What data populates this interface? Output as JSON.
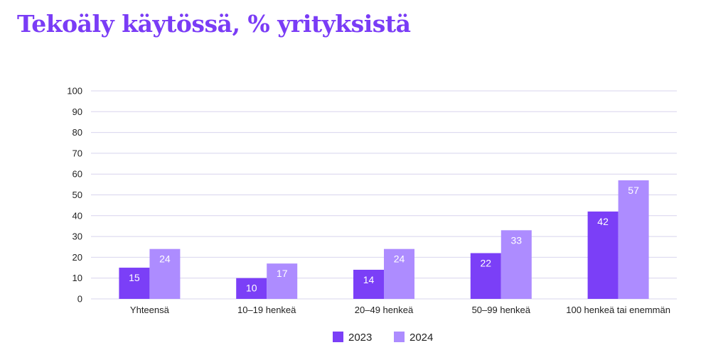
{
  "title": "Tekoäly käytössä, % yrityksistä",
  "colors": {
    "title": "#7a3cf6",
    "s2023": "#7b3ff7",
    "s2024": "#ad8cff",
    "grid": "#d8d4ee"
  },
  "chart_data": {
    "type": "bar",
    "title": "Tekoäly käytössä, % yrityksistä",
    "categories": [
      "Yhteensä",
      "10–19 henkeä",
      "20–49 henkeä",
      "50–99 henkeä",
      "100 henkeä tai enemmän"
    ],
    "series": [
      {
        "name": "2023",
        "values": [
          15,
          10,
          14,
          22,
          42
        ]
      },
      {
        "name": "2024",
        "values": [
          24,
          17,
          24,
          33,
          57
        ]
      }
    ],
    "ylim": [
      0,
      100
    ],
    "yticks": [
      0,
      10,
      20,
      30,
      40,
      50,
      60,
      70,
      80,
      90,
      100
    ],
    "grid": true,
    "legend": "bottom-center",
    "xlabel": "",
    "ylabel": ""
  }
}
